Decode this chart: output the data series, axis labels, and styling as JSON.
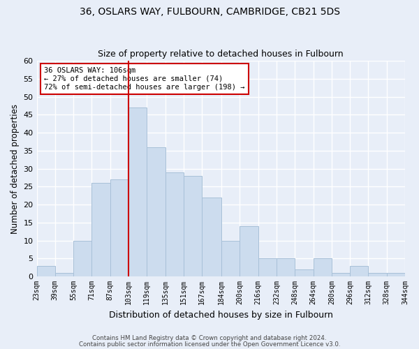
{
  "title": "36, OSLARS WAY, FULBOURN, CAMBRIDGE, CB21 5DS",
  "subtitle": "Size of property relative to detached houses in Fulbourn",
  "xlabel": "Distribution of detached houses by size in Fulbourn",
  "ylabel": "Number of detached properties",
  "bin_edges": [
    23,
    39,
    55,
    71,
    87,
    103,
    119,
    135,
    151,
    167,
    184,
    200,
    216,
    232,
    248,
    264,
    280,
    296,
    312,
    328,
    344
  ],
  "bin_labels": [
    "23sqm",
    "39sqm",
    "55sqm",
    "71sqm",
    "87sqm",
    "103sqm",
    "119sqm",
    "135sqm",
    "151sqm",
    "167sqm",
    "184sqm",
    "200sqm",
    "216sqm",
    "232sqm",
    "248sqm",
    "264sqm",
    "280sqm",
    "296sqm",
    "312sqm",
    "328sqm",
    "344sqm"
  ],
  "counts": [
    3,
    1,
    10,
    26,
    27,
    47,
    36,
    29,
    28,
    22,
    10,
    14,
    5,
    5,
    2,
    5,
    1,
    3,
    1,
    1
  ],
  "bar_color": "#ccdcee",
  "bar_edge_color": "#a8c0d8",
  "vline_x": 103,
  "vline_color": "#cc0000",
  "annotation_text": "36 OSLARS WAY: 106sqm\n← 27% of detached houses are smaller (74)\n72% of semi-detached houses are larger (198) →",
  "annotation_box_color": "#ffffff",
  "annotation_box_edge": "#cc0000",
  "ylim": [
    0,
    60
  ],
  "yticks": [
    0,
    5,
    10,
    15,
    20,
    25,
    30,
    35,
    40,
    45,
    50,
    55,
    60
  ],
  "footer1": "Contains HM Land Registry data © Crown copyright and database right 2024.",
  "footer2": "Contains public sector information licensed under the Open Government Licence v3.0.",
  "background_color": "#e8eef8",
  "grid_color": "#ffffff"
}
